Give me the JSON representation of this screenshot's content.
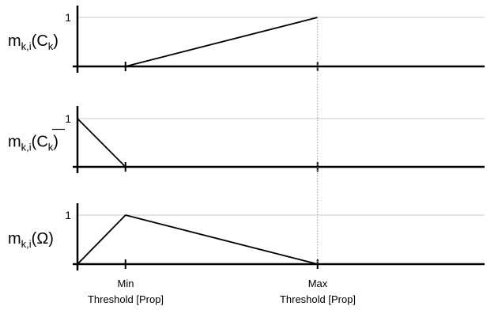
{
  "chart_data": [
    {
      "type": "line",
      "ylabel": {
        "base": "m",
        "sub": "k,i",
        "arg": "(C",
        "arg_sub": "k",
        "close": ")"
      },
      "ytick": "1",
      "ylim": [
        0,
        1
      ],
      "x_labels": [
        "Min",
        "Threshold [Prop]",
        "Max",
        "Threshold [Prop]"
      ],
      "series": [
        {
          "x": [
            0,
            1,
            5
          ],
          "y": [
            0,
            0,
            1
          ]
        }
      ]
    },
    {
      "type": "line",
      "ylabel": {
        "base": "m",
        "sub": "k,i",
        "arg": "(C",
        "arg_sub": "k",
        "close": ")",
        "overbar": true
      },
      "ytick": "1",
      "ylim": [
        0,
        1
      ],
      "series": [
        {
          "x": [
            0,
            1
          ],
          "y": [
            1,
            0
          ]
        }
      ]
    },
    {
      "type": "line",
      "ylabel": {
        "base": "m",
        "sub": "k,i",
        "arg": "(Ω)"
      },
      "ytick": "1",
      "ylim": [
        0,
        1
      ],
      "series": [
        {
          "x": [
            0,
            1,
            5
          ],
          "y": [
            0,
            1,
            0
          ]
        }
      ]
    }
  ],
  "x_axis": {
    "min_label": [
      "Min",
      "Threshold [Prop]"
    ],
    "max_label": [
      "Max",
      "Threshold [Prop]"
    ],
    "min_x": 1,
    "max_x": 5
  },
  "colors": {
    "axis": "#000000",
    "grid": "#c8c8c8",
    "line": "#000000",
    "guide": "#999999"
  }
}
